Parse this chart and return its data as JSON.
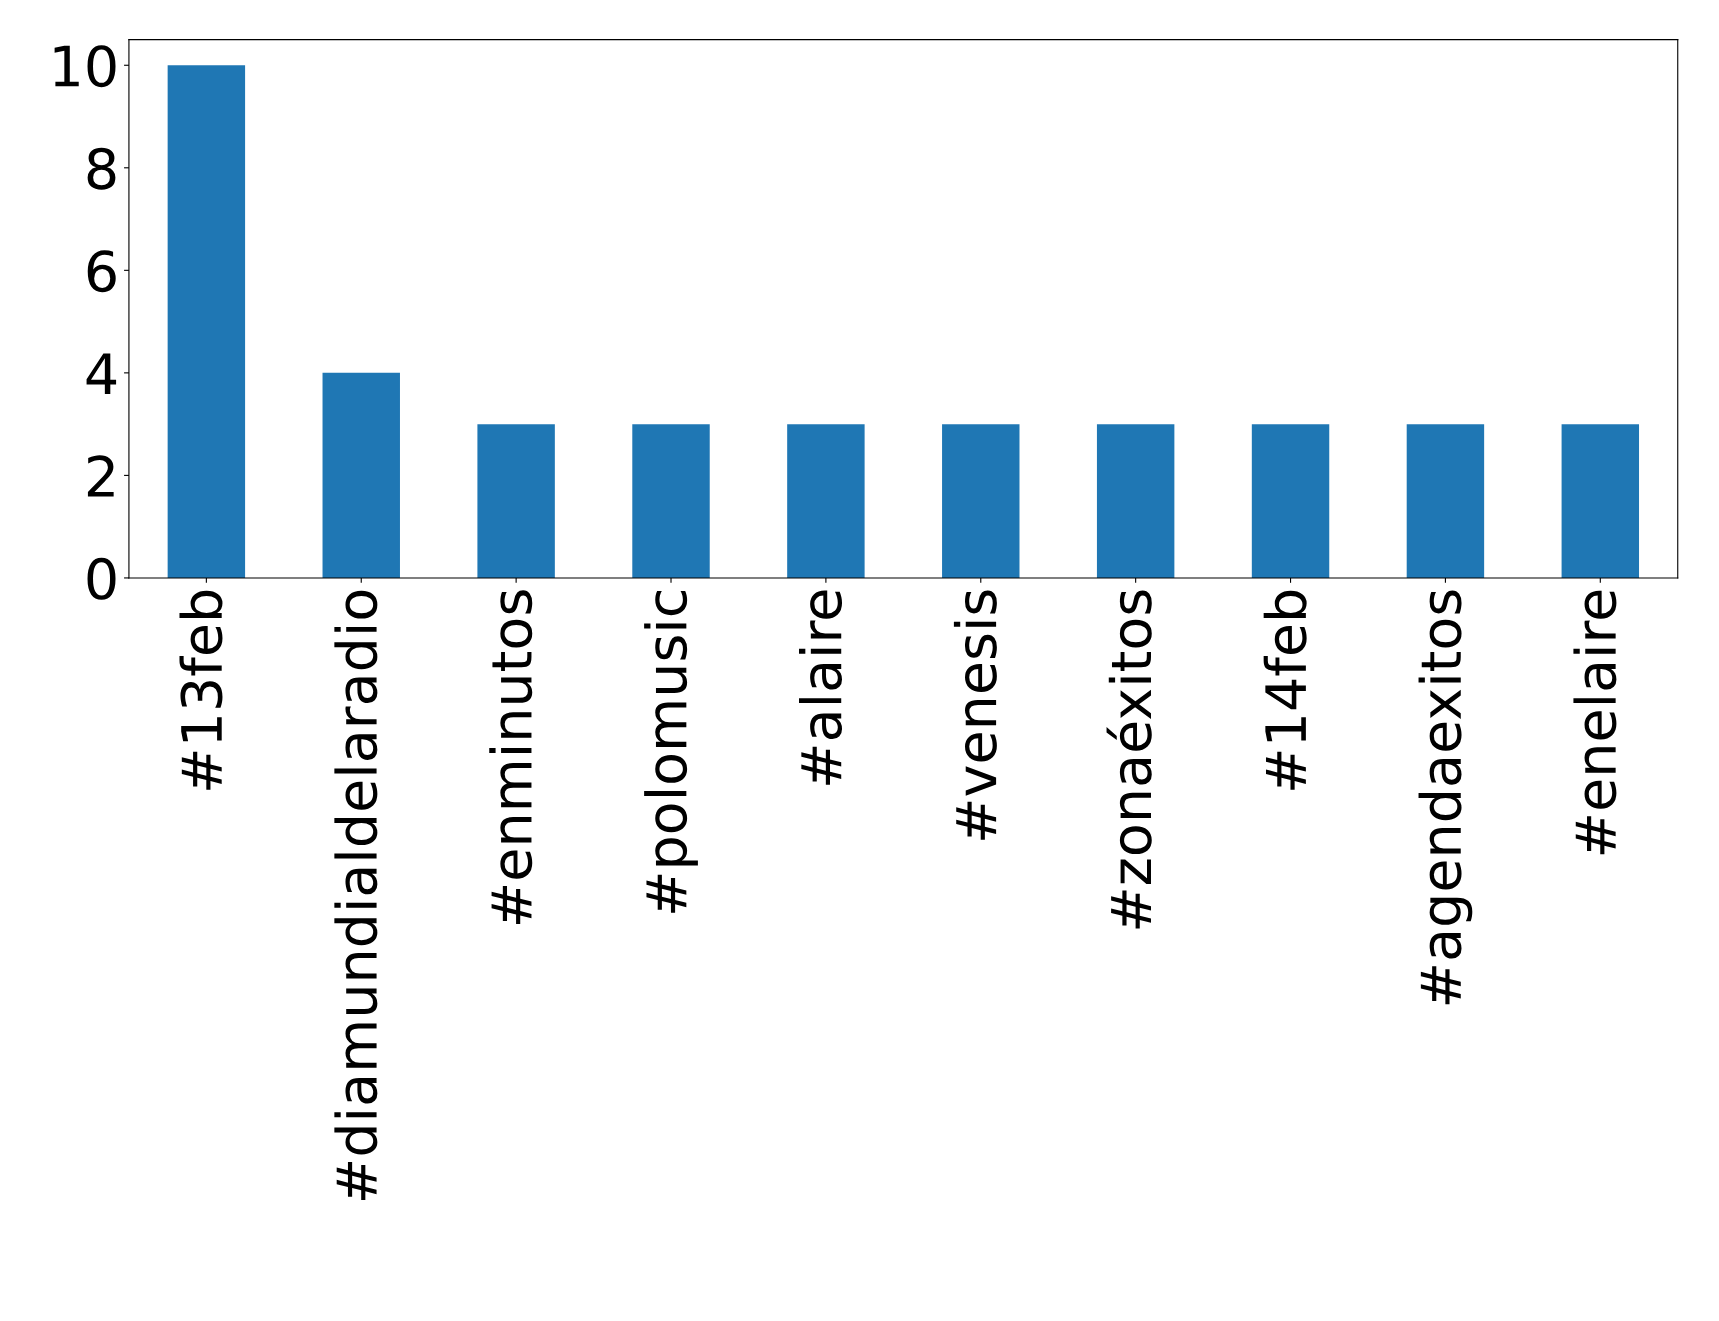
{
  "chart_data": {
    "type": "bar",
    "categories": [
      "#13feb",
      "#diamundialdelaradio",
      "#enminutos",
      "#polomusic",
      "#alaire",
      "#venesis",
      "#zonaéxitos",
      "#14feb",
      "#agendaexitos",
      "#enelaire"
    ],
    "values": [
      10,
      4,
      3,
      3,
      3,
      3,
      3,
      3,
      3,
      3
    ],
    "color": "#1f77b4",
    "ylim": [
      0,
      10.5
    ],
    "yticks": [
      0,
      2,
      4,
      6,
      8,
      10
    ],
    "grid": false,
    "legend": false
  }
}
